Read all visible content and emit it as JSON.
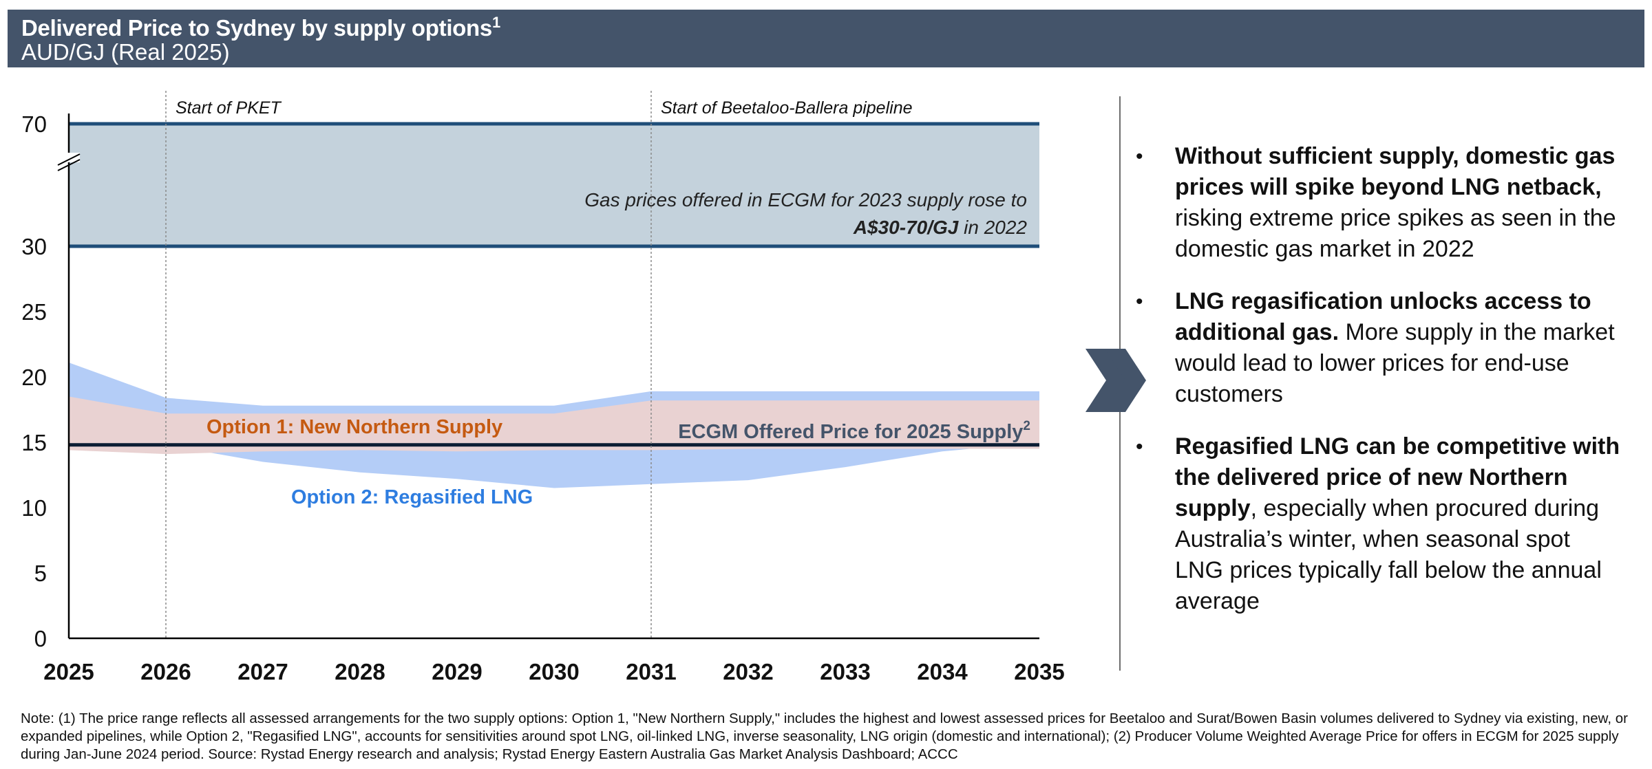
{
  "header": {
    "title": "Delivered Price to Sydney by supply options",
    "title_sup": "1",
    "subtitle": "AUD/GJ (Real 2025)"
  },
  "chart_data": {
    "type": "area",
    "x": [
      2025,
      2026,
      2027,
      2028,
      2029,
      2030,
      2031,
      2032,
      2033,
      2034,
      2035
    ],
    "y_ticks": [
      "0",
      "5",
      "10",
      "15",
      "20",
      "25",
      "30",
      "70"
    ],
    "x_ticks": [
      "2025",
      "2026",
      "2027",
      "2028",
      "2029",
      "2030",
      "2031",
      "2032",
      "2033",
      "2034",
      "2035"
    ],
    "ylim": [
      0,
      70
    ],
    "y_axis_break": true,
    "grid": false,
    "series": [
      {
        "name": "Option 2: Regasified LNG",
        "kind": "range",
        "color": "#b4cdf7",
        "upper": [
          21.1,
          18.4,
          17.8,
          17.8,
          17.8,
          17.8,
          18.9,
          18.9,
          18.9,
          18.9,
          18.9
        ],
        "lower": [
          15.5,
          14.8,
          13.5,
          12.7,
          12.2,
          11.5,
          11.8,
          12.1,
          13.1,
          14.3,
          15.0
        ]
      },
      {
        "name": "Option 1: New Northern Supply",
        "kind": "range",
        "color": "#e9d2d2",
        "upper": [
          18.5,
          17.2,
          17.2,
          17.2,
          17.2,
          17.2,
          18.2,
          18.2,
          18.2,
          18.2,
          18.2
        ],
        "lower": [
          14.4,
          14.1,
          14.3,
          14.4,
          14.3,
          14.4,
          14.4,
          14.5,
          14.5,
          14.5,
          14.5
        ]
      },
      {
        "name": "ECGM Offered Price for 2025 Supply",
        "name_sup": "2",
        "kind": "line",
        "color": "#0b1d33",
        "values": [
          14.8,
          14.8,
          14.8,
          14.8,
          14.8,
          14.8,
          14.8,
          14.8,
          14.8,
          14.8,
          14.8
        ]
      }
    ],
    "band": {
      "low": 30,
      "high": 70,
      "color": "#c4d2dc",
      "label_line1": "Gas prices offered in ECGM for 2023 supply rose to",
      "label_bold": "A$30-70/GJ",
      "label_rest": " in 2022"
    },
    "annotations": [
      {
        "x": 2026,
        "text": "Start of PKET"
      },
      {
        "x": 2031,
        "text": "Start of Beetaloo-Ballera pipeline"
      }
    ],
    "colors": {
      "option1_label": "#c55a11",
      "option2_label": "#2e7de0",
      "ecgm_label": "#44546a",
      "band_border": "#1f4e79",
      "axis": "#000000"
    }
  },
  "bullets": [
    {
      "bold": "Without sufficient supply, domestic gas prices will spike beyond LNG netback,",
      "text": " risking extreme price spikes as seen in the domestic gas market in 2022"
    },
    {
      "bold": "LNG regasification unlocks access to additional gas.",
      "text": " More supply in the market would lead to lower prices for end-use customers"
    },
    {
      "bold": "Regasified LNG can be competitive with the delivered price of new Northern supply",
      "text": ", especially when procured during Australia’s winter, when seasonal spot LNG prices typically fall below the annual average"
    }
  ],
  "bullet_marker": "•",
  "footnote": "Note: (1) The price range reflects all assessed arrangements for the two supply options: Option 1, \"New Northern Supply,\" includes the highest and lowest assessed prices for Beetaloo and Surat/Bowen Basin volumes delivered to Sydney via existing, new, or expanded pipelines, while Option 2, \"Regasified LNG\", accounts for sensitivities around spot LNG, oil-linked LNG, inverse seasonality, LNG origin (domestic and international); (2) Producer Volume Weighted Average Price for offers in ECGM for 2025 supply during Jan-June 2024 period. Source: Rystad Energy research and analysis; Rystad Energy Eastern Australia Gas Market Analysis Dashboard; ACCC"
}
